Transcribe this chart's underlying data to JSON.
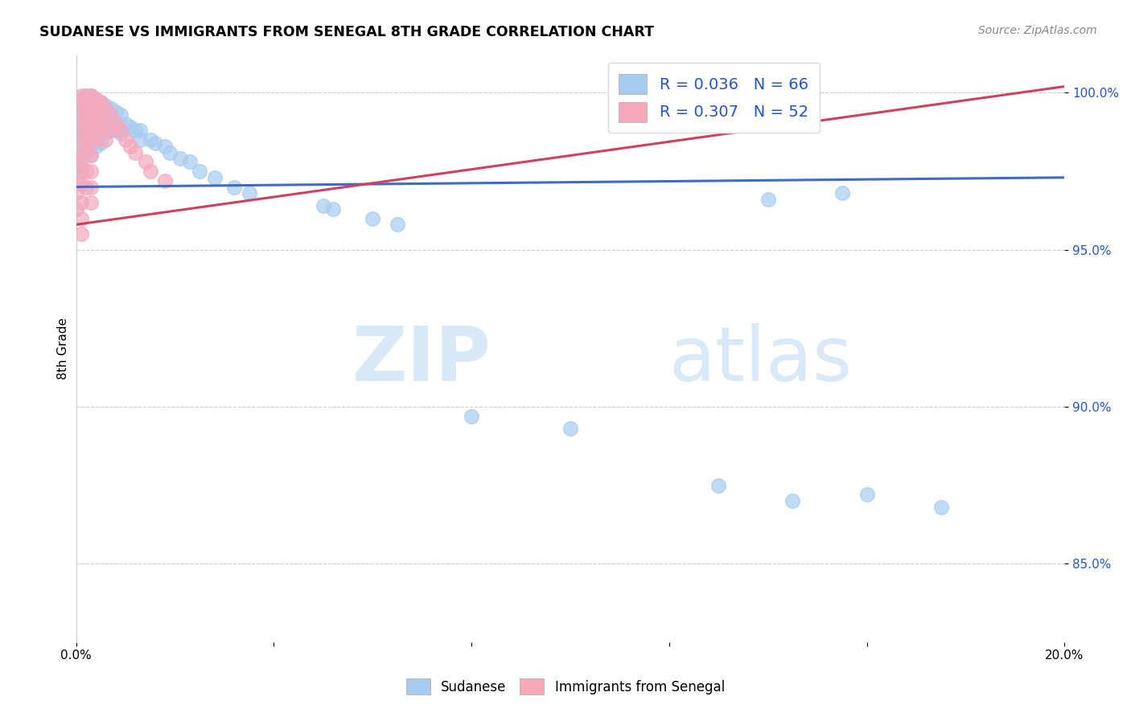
{
  "title": "SUDANESE VS IMMIGRANTS FROM SENEGAL 8TH GRADE CORRELATION CHART",
  "source": "Source: ZipAtlas.com",
  "xlim": [
    0.0,
    0.2
  ],
  "ylim": [
    0.825,
    1.012
  ],
  "ylabel": "8th Grade",
  "blue_R": 0.036,
  "blue_N": 66,
  "pink_R": 0.307,
  "pink_N": 52,
  "blue_color": "#A8CCF0",
  "pink_color": "#F5A8BC",
  "blue_line_color": "#3B6CC7",
  "pink_line_color": "#D04060",
  "legend_label_blue": "Sudanese",
  "legend_label_pink": "Immigrants from Senegal",
  "watermark_zip": "ZIP",
  "watermark_atlas": "atlas",
  "blue_scatter_x": [
    0.0,
    0.001,
    0.001,
    0.001,
    0.001,
    0.001,
    0.001,
    0.001,
    0.001,
    0.002,
    0.002,
    0.002,
    0.002,
    0.002,
    0.002,
    0.003,
    0.003,
    0.003,
    0.003,
    0.003,
    0.003,
    0.004,
    0.004,
    0.004,
    0.004,
    0.004,
    0.005,
    0.005,
    0.005,
    0.005,
    0.006,
    0.006,
    0.006,
    0.007,
    0.007,
    0.008,
    0.008,
    0.009,
    0.009,
    0.01,
    0.011,
    0.012,
    0.013,
    0.013,
    0.015,
    0.016,
    0.018,
    0.019,
    0.021,
    0.023,
    0.025,
    0.028,
    0.032,
    0.035,
    0.05,
    0.052,
    0.06,
    0.065,
    0.08,
    0.1,
    0.13,
    0.145,
    0.16,
    0.175,
    0.14,
    0.155
  ],
  "blue_scatter_y": [
    0.997,
    0.998,
    0.994,
    0.991,
    0.989,
    0.987,
    0.983,
    0.979,
    0.975,
    0.999,
    0.997,
    0.993,
    0.99,
    0.986,
    0.982,
    0.999,
    0.996,
    0.993,
    0.989,
    0.985,
    0.98,
    0.998,
    0.995,
    0.991,
    0.987,
    0.983,
    0.997,
    0.993,
    0.989,
    0.984,
    0.996,
    0.992,
    0.987,
    0.995,
    0.99,
    0.994,
    0.988,
    0.993,
    0.987,
    0.99,
    0.989,
    0.988,
    0.988,
    0.985,
    0.985,
    0.984,
    0.983,
    0.981,
    0.979,
    0.978,
    0.975,
    0.973,
    0.97,
    0.968,
    0.964,
    0.963,
    0.96,
    0.958,
    0.897,
    0.893,
    0.875,
    0.87,
    0.872,
    0.868,
    0.966,
    0.968
  ],
  "pink_scatter_x": [
    0.0,
    0.0,
    0.0,
    0.0,
    0.001,
    0.001,
    0.001,
    0.001,
    0.001,
    0.001,
    0.001,
    0.001,
    0.001,
    0.001,
    0.001,
    0.002,
    0.002,
    0.002,
    0.002,
    0.002,
    0.002,
    0.002,
    0.002,
    0.003,
    0.003,
    0.003,
    0.003,
    0.003,
    0.003,
    0.003,
    0.003,
    0.003,
    0.004,
    0.004,
    0.004,
    0.004,
    0.005,
    0.005,
    0.005,
    0.006,
    0.006,
    0.006,
    0.007,
    0.007,
    0.008,
    0.009,
    0.01,
    0.011,
    0.012,
    0.014,
    0.015,
    0.018
  ],
  "pink_scatter_y": [
    0.978,
    0.973,
    0.968,
    0.963,
    0.999,
    0.997,
    0.993,
    0.989,
    0.985,
    0.981,
    0.977,
    0.971,
    0.965,
    0.96,
    0.955,
    0.999,
    0.997,
    0.993,
    0.989,
    0.985,
    0.981,
    0.975,
    0.97,
    0.999,
    0.996,
    0.993,
    0.989,
    0.985,
    0.98,
    0.975,
    0.97,
    0.965,
    0.998,
    0.994,
    0.99,
    0.985,
    0.997,
    0.993,
    0.988,
    0.995,
    0.99,
    0.985,
    0.993,
    0.988,
    0.99,
    0.988,
    0.985,
    0.983,
    0.981,
    0.978,
    0.975,
    0.972
  ],
  "blue_line_x": [
    0.0,
    0.2
  ],
  "blue_line_y": [
    0.97,
    0.973
  ],
  "pink_line_x": [
    0.0,
    0.2
  ],
  "pink_line_y": [
    0.958,
    1.002
  ],
  "ytick_vals": [
    0.85,
    0.9,
    0.95,
    1.0
  ],
  "ytick_labels": [
    "85.0%",
    "90.0%",
    "95.0%",
    "100.0%"
  ],
  "xtick_vals": [
    0.0,
    0.04,
    0.08,
    0.12,
    0.16,
    0.2
  ],
  "xtick_labels": [
    "0.0%",
    "",
    "",
    "",
    "",
    "20.0%"
  ]
}
